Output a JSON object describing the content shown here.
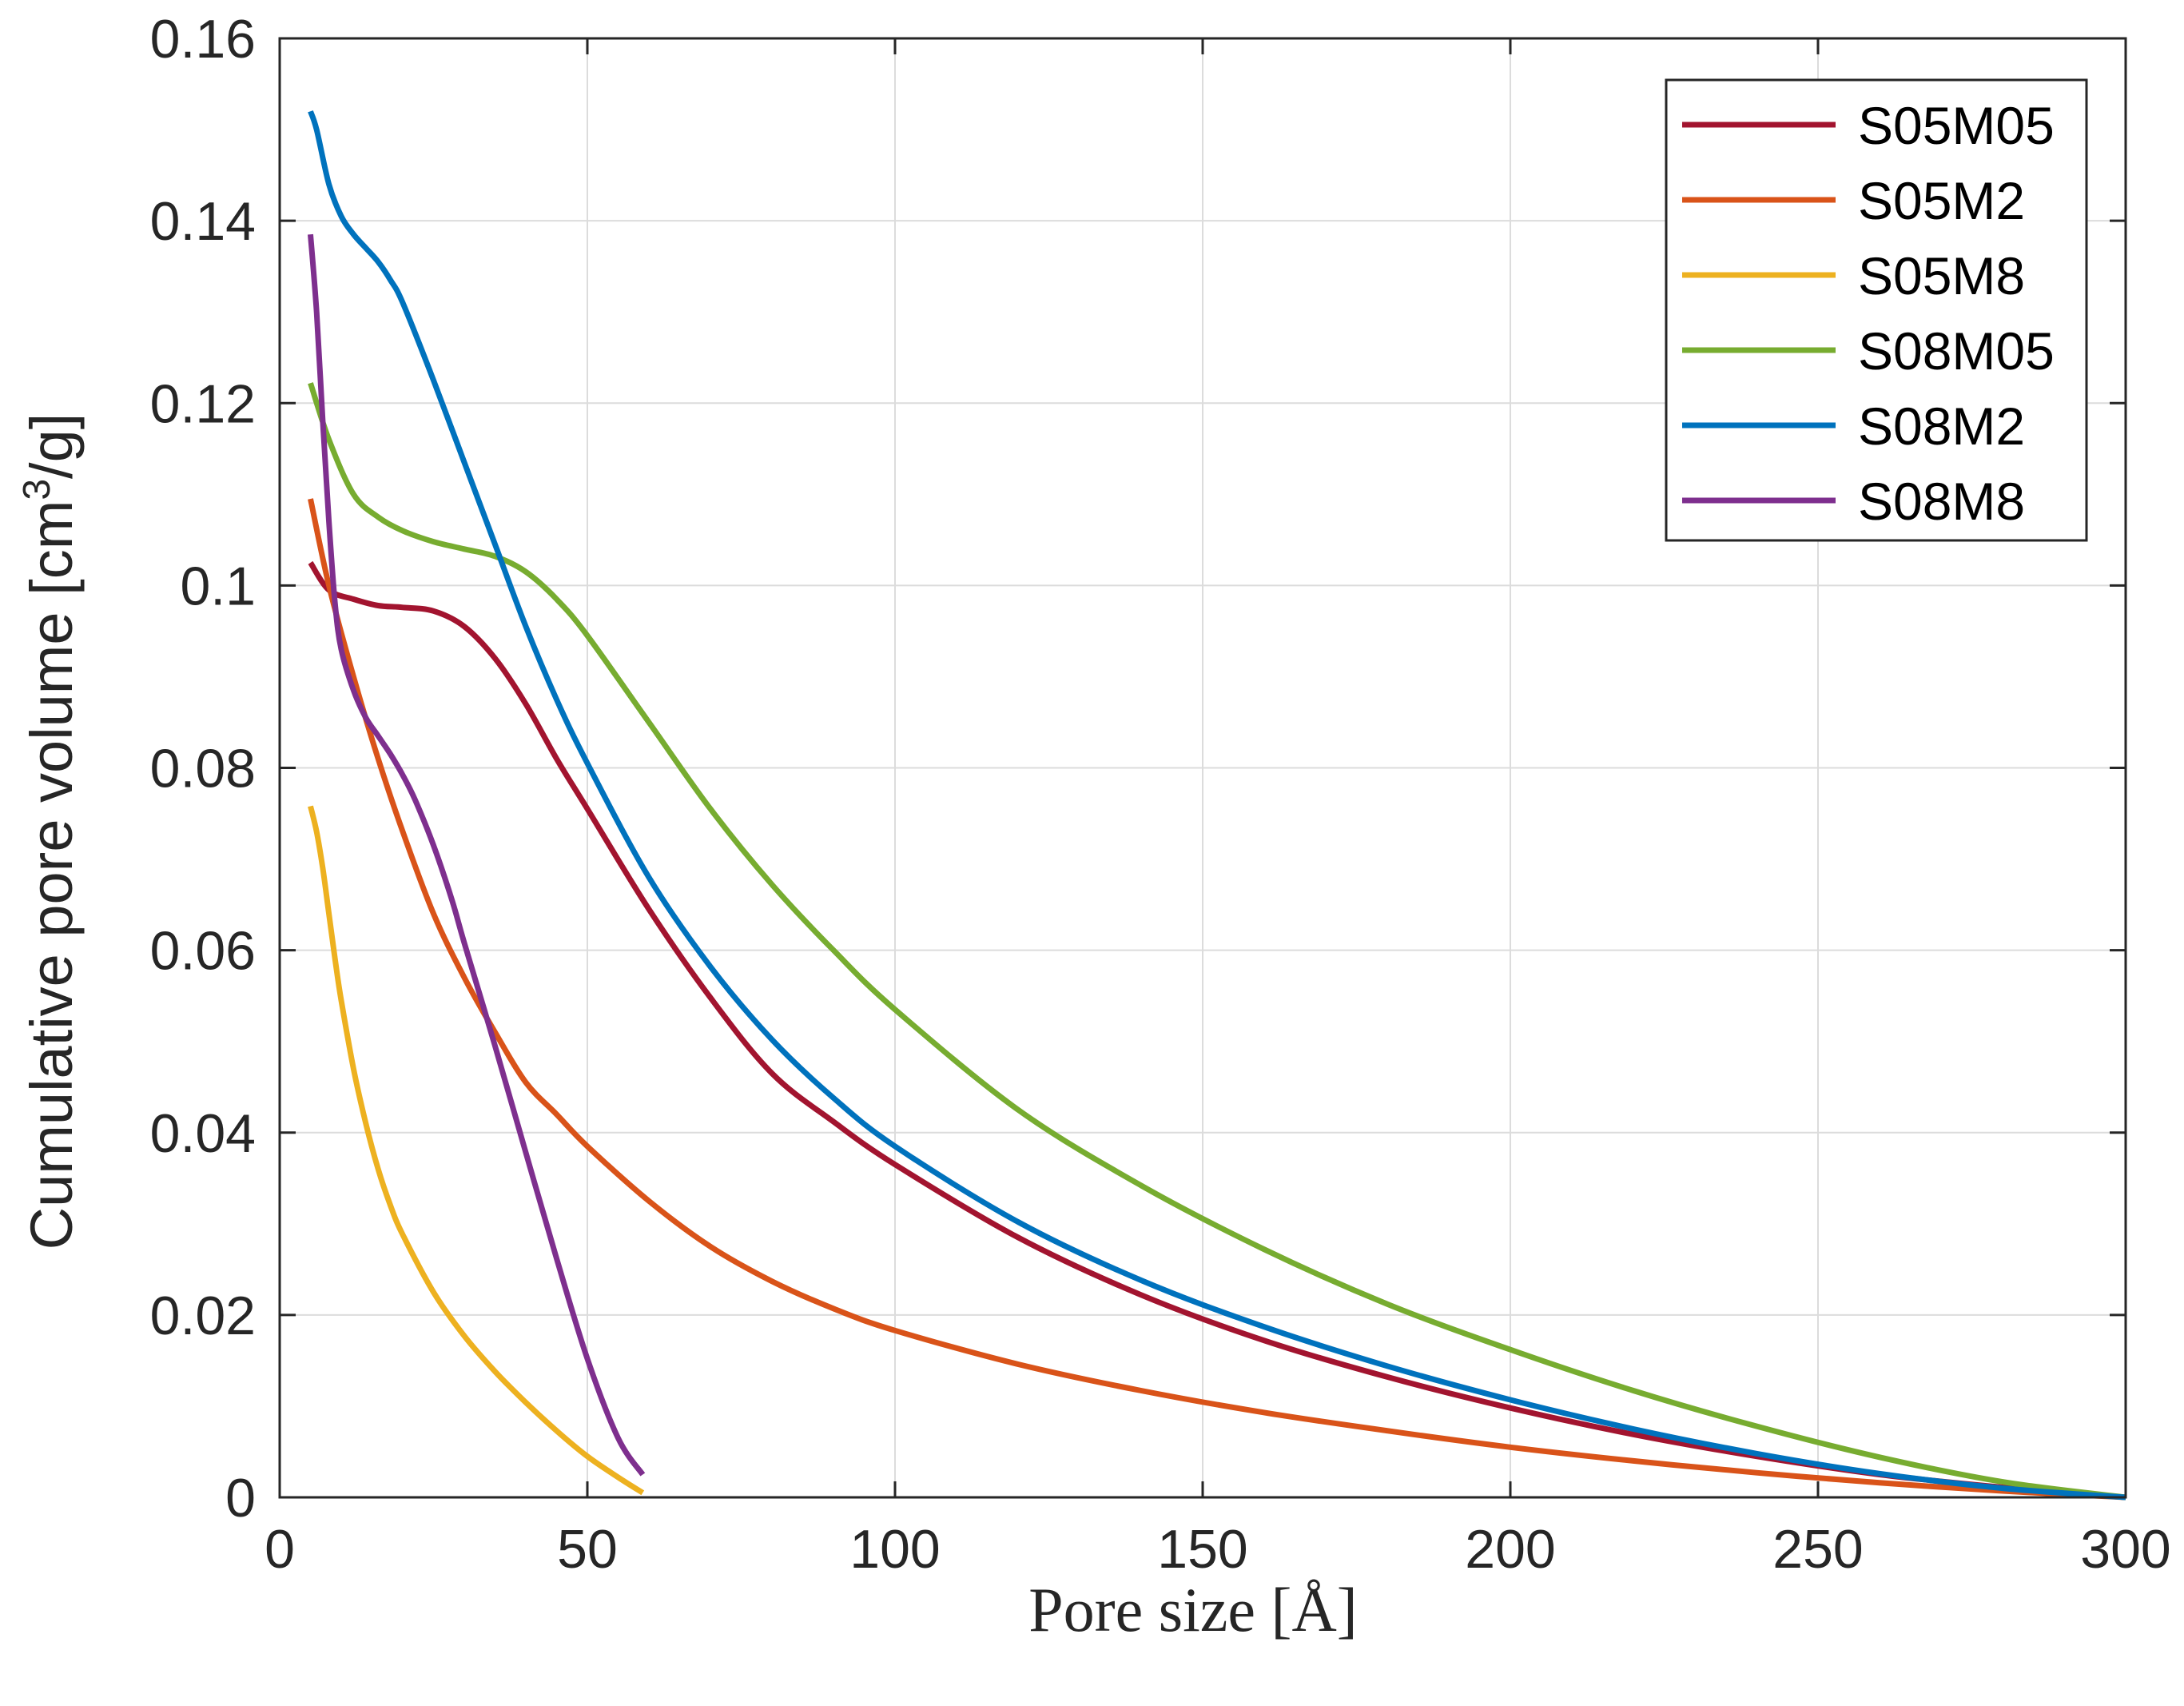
{
  "chart_data": {
    "type": "line",
    "title": "",
    "xlabel": "Pore size [Å]",
    "ylabel": "Cumulative pore volume [cm",
    "ylabel_sup": "3",
    "ylabel_suffix": "/g]",
    "xlim": [
      0,
      300
    ],
    "ylim": [
      0,
      0.16
    ],
    "xticks": [
      0,
      50,
      100,
      150,
      200,
      250,
      300
    ],
    "xtick_labels": [
      "0",
      "50",
      "100",
      "150",
      "200",
      "250",
      "300"
    ],
    "yticks": [
      0,
      0.02,
      0.04,
      0.06,
      0.08,
      0.1,
      0.12,
      0.14,
      0.16
    ],
    "ytick_labels": [
      "0",
      "0.02",
      "0.04",
      "0.06",
      "0.08",
      "0.1",
      "0.12",
      "0.14",
      "0.16"
    ],
    "grid": true,
    "legend_position": "top-right",
    "series": [
      {
        "name": "S05M05",
        "color": "#A2142F",
        "x": [
          5,
          8,
          12,
          16,
          20,
          25,
          30,
          35,
          40,
          45,
          50,
          60,
          70,
          80,
          90,
          100,
          120,
          140,
          160,
          180,
          200,
          220,
          240,
          260,
          280,
          300
        ],
        "y": [
          0.1025,
          0.0995,
          0.0985,
          0.0978,
          0.0976,
          0.0972,
          0.0955,
          0.092,
          0.087,
          0.081,
          0.0755,
          0.0645,
          0.0548,
          0.0465,
          0.0412,
          0.0365,
          0.0285,
          0.0222,
          0.0172,
          0.0132,
          0.0098,
          0.0069,
          0.0045,
          0.0025,
          0.0011,
          0.0
        ]
      },
      {
        "name": "S05M2",
        "color": "#D95319",
        "x": [
          5,
          8,
          12,
          16,
          20,
          25,
          30,
          35,
          40,
          45,
          50,
          60,
          70,
          80,
          90,
          100,
          120,
          140,
          160,
          180,
          200,
          220,
          240,
          260,
          280,
          300
        ],
        "y": [
          0.1095,
          0.1,
          0.09,
          0.081,
          0.073,
          0.064,
          0.057,
          0.051,
          0.0455,
          0.042,
          0.0385,
          0.0325,
          0.0275,
          0.0237,
          0.0207,
          0.0183,
          0.0146,
          0.0117,
          0.0093,
          0.0073,
          0.0055,
          0.004,
          0.0027,
          0.0016,
          0.0007,
          0.0
        ]
      },
      {
        "name": "S05M8",
        "color": "#EDB120",
        "x": [
          5,
          6,
          7,
          8,
          9,
          10,
          12,
          14,
          16,
          18,
          20,
          25,
          30,
          35,
          40,
          45,
          50,
          55,
          59
        ],
        "y": [
          0.0758,
          0.073,
          0.069,
          0.064,
          0.059,
          0.0545,
          0.047,
          0.041,
          0.036,
          0.032,
          0.0288,
          0.0225,
          0.0177,
          0.0138,
          0.0104,
          0.0073,
          0.0045,
          0.0022,
          0.0005
        ]
      },
      {
        "name": "S08M05",
        "color": "#77AC30",
        "x": [
          5,
          8,
          12,
          16,
          20,
          25,
          30,
          35,
          40,
          45,
          50,
          60,
          70,
          80,
          90,
          100,
          120,
          140,
          160,
          180,
          200,
          220,
          240,
          260,
          280,
          300
        ],
        "y": [
          0.1222,
          0.116,
          0.11,
          0.1075,
          0.106,
          0.1048,
          0.104,
          0.1032,
          0.1015,
          0.0985,
          0.0945,
          0.085,
          0.0755,
          0.0672,
          0.06,
          0.0535,
          0.0425,
          0.0342,
          0.0272,
          0.0212,
          0.0162,
          0.0117,
          0.0078,
          0.0044,
          0.0017,
          0.0
        ]
      },
      {
        "name": "S08M2",
        "color": "#0072BD",
        "x": [
          5,
          6,
          8,
          10,
          12,
          14,
          16,
          18,
          20,
          25,
          30,
          35,
          40,
          45,
          50,
          60,
          70,
          80,
          90,
          100,
          120,
          140,
          160,
          180,
          200,
          220,
          240,
          260,
          280,
          300
        ],
        "y": [
          0.152,
          0.15,
          0.144,
          0.1405,
          0.1385,
          0.137,
          0.1355,
          0.1335,
          0.131,
          0.1225,
          0.1135,
          0.1045,
          0.0955,
          0.0875,
          0.0805,
          0.068,
          0.0582,
          0.0502,
          0.0438,
          0.0385,
          0.0302,
          0.0238,
          0.0187,
          0.0144,
          0.0107,
          0.0075,
          0.0048,
          0.0026,
          0.001,
          0.0
        ]
      },
      {
        "name": "S08M8",
        "color": "#7E2F8E",
        "x": [
          5,
          6,
          7,
          8,
          9,
          10,
          12,
          14,
          16,
          18,
          20,
          22,
          25,
          28,
          30,
          35,
          40,
          45,
          50,
          55,
          59
        ],
        "y": [
          0.1385,
          0.13,
          0.118,
          0.107,
          0.098,
          0.093,
          0.0885,
          0.0855,
          0.0835,
          0.0815,
          0.0792,
          0.0765,
          0.0715,
          0.0655,
          0.0608,
          0.0495,
          0.0378,
          0.0262,
          0.0152,
          0.0065,
          0.0025
        ]
      }
    ]
  }
}
